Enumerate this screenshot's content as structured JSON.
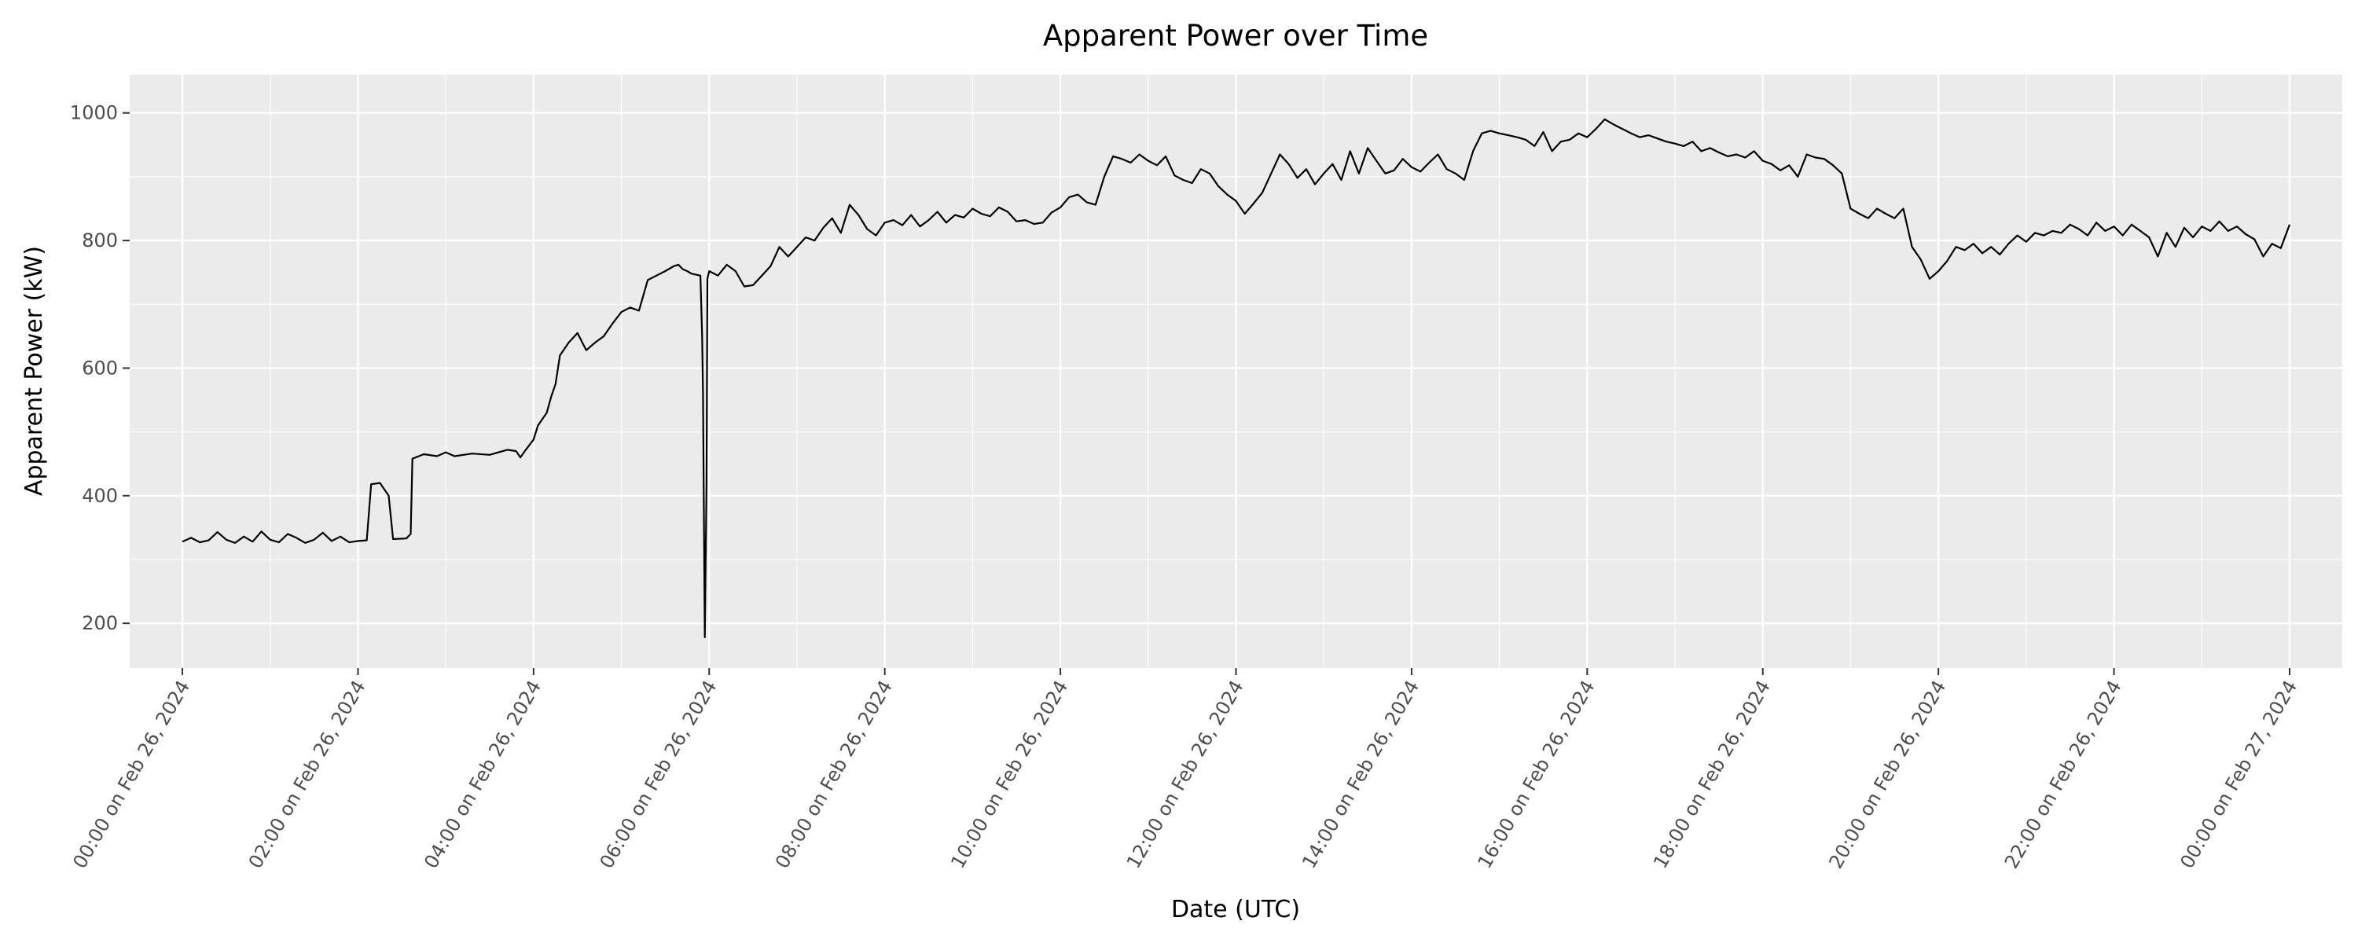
{
  "chart_data": {
    "type": "line",
    "title": "Apparent Power over Time",
    "xlabel": "Date (UTC)",
    "ylabel": "Apparent Power (kW)",
    "x_unit": "hours since 00:00 on Feb 26, 2024",
    "xlim": [
      -0.6,
      24.6
    ],
    "ylim": [
      130,
      1060
    ],
    "x_ticks": [
      {
        "x": 0,
        "label": "00:00 on Feb 26, 2024"
      },
      {
        "x": 2,
        "label": "02:00 on Feb 26, 2024"
      },
      {
        "x": 4,
        "label": "04:00 on Feb 26, 2024"
      },
      {
        "x": 6,
        "label": "06:00 on Feb 26, 2024"
      },
      {
        "x": 8,
        "label": "08:00 on Feb 26, 2024"
      },
      {
        "x": 10,
        "label": "10:00 on Feb 26, 2024"
      },
      {
        "x": 12,
        "label": "12:00 on Feb 26, 2024"
      },
      {
        "x": 14,
        "label": "14:00 on Feb 26, 2024"
      },
      {
        "x": 16,
        "label": "16:00 on Feb 26, 2024"
      },
      {
        "x": 18,
        "label": "18:00 on Feb 26, 2024"
      },
      {
        "x": 20,
        "label": "20:00 on Feb 26, 2024"
      },
      {
        "x": 22,
        "label": "22:00 on Feb 26, 2024"
      },
      {
        "x": 24,
        "label": "00:00 on Feb 27, 2024"
      }
    ],
    "y_ticks": [
      {
        "y": 200,
        "label": "200"
      },
      {
        "y": 400,
        "label": "400"
      },
      {
        "y": 600,
        "label": "600"
      },
      {
        "y": 800,
        "label": "800"
      },
      {
        "y": 1000,
        "label": "1000"
      }
    ],
    "grid": true,
    "legend": "none",
    "series": [
      {
        "color": "#000000",
        "points": [
          [
            0.0,
            328
          ],
          [
            0.1,
            334
          ],
          [
            0.2,
            327
          ],
          [
            0.3,
            330
          ],
          [
            0.4,
            343
          ],
          [
            0.5,
            331
          ],
          [
            0.6,
            326
          ],
          [
            0.7,
            336
          ],
          [
            0.8,
            328
          ],
          [
            0.9,
            344
          ],
          [
            1.0,
            331
          ],
          [
            1.1,
            327
          ],
          [
            1.2,
            340
          ],
          [
            1.3,
            334
          ],
          [
            1.4,
            326
          ],
          [
            1.5,
            331
          ],
          [
            1.6,
            342
          ],
          [
            1.7,
            329
          ],
          [
            1.8,
            336
          ],
          [
            1.9,
            327
          ],
          [
            2.0,
            329
          ],
          [
            2.1,
            330
          ],
          [
            2.15,
            418
          ],
          [
            2.25,
            420
          ],
          [
            2.35,
            400
          ],
          [
            2.4,
            332
          ],
          [
            2.55,
            333
          ],
          [
            2.6,
            340
          ],
          [
            2.62,
            458
          ],
          [
            2.75,
            465
          ],
          [
            2.9,
            462
          ],
          [
            3.0,
            468
          ],
          [
            3.1,
            462
          ],
          [
            3.3,
            466
          ],
          [
            3.5,
            464
          ],
          [
            3.7,
            472
          ],
          [
            3.8,
            470
          ],
          [
            3.85,
            460
          ],
          [
            3.9,
            470
          ],
          [
            4.0,
            488
          ],
          [
            4.05,
            510
          ],
          [
            4.15,
            530
          ],
          [
            4.2,
            555
          ],
          [
            4.25,
            575
          ],
          [
            4.3,
            620
          ],
          [
            4.4,
            640
          ],
          [
            4.5,
            655
          ],
          [
            4.6,
            628
          ],
          [
            4.7,
            640
          ],
          [
            4.8,
            650
          ],
          [
            4.9,
            670
          ],
          [
            5.0,
            688
          ],
          [
            5.1,
            695
          ],
          [
            5.2,
            690
          ],
          [
            5.3,
            738
          ],
          [
            5.4,
            745
          ],
          [
            5.5,
            752
          ],
          [
            5.6,
            760
          ],
          [
            5.65,
            762
          ],
          [
            5.7,
            755
          ],
          [
            5.75,
            752
          ],
          [
            5.8,
            748
          ],
          [
            5.9,
            745
          ],
          [
            5.92,
            650
          ],
          [
            5.93,
            560
          ],
          [
            5.95,
            178
          ],
          [
            5.97,
            420
          ],
          [
            5.98,
            740
          ],
          [
            6.0,
            752
          ],
          [
            6.1,
            745
          ],
          [
            6.2,
            762
          ],
          [
            6.3,
            752
          ],
          [
            6.4,
            728
          ],
          [
            6.5,
            730
          ],
          [
            6.6,
            745
          ],
          [
            6.7,
            760
          ],
          [
            6.8,
            790
          ],
          [
            6.9,
            775
          ],
          [
            7.0,
            790
          ],
          [
            7.1,
            805
          ],
          [
            7.2,
            800
          ],
          [
            7.3,
            820
          ],
          [
            7.4,
            835
          ],
          [
            7.5,
            812
          ],
          [
            7.6,
            856
          ],
          [
            7.7,
            840
          ],
          [
            7.8,
            818
          ],
          [
            7.9,
            808
          ],
          [
            8.0,
            828
          ],
          [
            8.1,
            832
          ],
          [
            8.2,
            824
          ],
          [
            8.3,
            840
          ],
          [
            8.4,
            822
          ],
          [
            8.5,
            832
          ],
          [
            8.6,
            845
          ],
          [
            8.7,
            828
          ],
          [
            8.8,
            840
          ],
          [
            8.9,
            836
          ],
          [
            9.0,
            850
          ],
          [
            9.1,
            842
          ],
          [
            9.2,
            838
          ],
          [
            9.3,
            852
          ],
          [
            9.4,
            845
          ],
          [
            9.5,
            830
          ],
          [
            9.6,
            832
          ],
          [
            9.7,
            826
          ],
          [
            9.8,
            828
          ],
          [
            9.9,
            844
          ],
          [
            10.0,
            852
          ],
          [
            10.1,
            868
          ],
          [
            10.2,
            872
          ],
          [
            10.3,
            860
          ],
          [
            10.4,
            856
          ],
          [
            10.5,
            900
          ],
          [
            10.6,
            932
          ],
          [
            10.7,
            928
          ],
          [
            10.8,
            922
          ],
          [
            10.9,
            935
          ],
          [
            11.0,
            925
          ],
          [
            11.1,
            918
          ],
          [
            11.2,
            932
          ],
          [
            11.3,
            902
          ],
          [
            11.4,
            895
          ],
          [
            11.5,
            890
          ],
          [
            11.6,
            912
          ],
          [
            11.7,
            905
          ],
          [
            11.8,
            885
          ],
          [
            11.9,
            872
          ],
          [
            12.0,
            862
          ],
          [
            12.1,
            842
          ],
          [
            12.2,
            858
          ],
          [
            12.3,
            875
          ],
          [
            12.4,
            905
          ],
          [
            12.5,
            935
          ],
          [
            12.6,
            920
          ],
          [
            12.7,
            898
          ],
          [
            12.8,
            912
          ],
          [
            12.9,
            888
          ],
          [
            13.0,
            905
          ],
          [
            13.1,
            920
          ],
          [
            13.2,
            895
          ],
          [
            13.3,
            940
          ],
          [
            13.4,
            905
          ],
          [
            13.5,
            945
          ],
          [
            13.6,
            925
          ],
          [
            13.7,
            905
          ],
          [
            13.8,
            910
          ],
          [
            13.9,
            928
          ],
          [
            14.0,
            915
          ],
          [
            14.1,
            908
          ],
          [
            14.2,
            922
          ],
          [
            14.3,
            935
          ],
          [
            14.4,
            912
          ],
          [
            14.5,
            905
          ],
          [
            14.6,
            895
          ],
          [
            14.7,
            940
          ],
          [
            14.8,
            968
          ],
          [
            14.9,
            972
          ],
          [
            15.0,
            968
          ],
          [
            15.1,
            965
          ],
          [
            15.2,
            962
          ],
          [
            15.3,
            958
          ],
          [
            15.4,
            948
          ],
          [
            15.5,
            970
          ],
          [
            15.6,
            940
          ],
          [
            15.7,
            955
          ],
          [
            15.8,
            958
          ],
          [
            15.9,
            968
          ],
          [
            16.0,
            962
          ],
          [
            16.1,
            975
          ],
          [
            16.2,
            990
          ],
          [
            16.3,
            982
          ],
          [
            16.4,
            975
          ],
          [
            16.5,
            968
          ],
          [
            16.6,
            962
          ],
          [
            16.7,
            965
          ],
          [
            16.8,
            960
          ],
          [
            16.9,
            955
          ],
          [
            17.0,
            952
          ],
          [
            17.1,
            948
          ],
          [
            17.2,
            955
          ],
          [
            17.3,
            940
          ],
          [
            17.4,
            945
          ],
          [
            17.5,
            938
          ],
          [
            17.6,
            932
          ],
          [
            17.7,
            935
          ],
          [
            17.8,
            930
          ],
          [
            17.9,
            940
          ],
          [
            18.0,
            925
          ],
          [
            18.1,
            920
          ],
          [
            18.2,
            910
          ],
          [
            18.3,
            918
          ],
          [
            18.4,
            900
          ],
          [
            18.5,
            935
          ],
          [
            18.6,
            930
          ],
          [
            18.7,
            928
          ],
          [
            18.8,
            918
          ],
          [
            18.9,
            905
          ],
          [
            19.0,
            850
          ],
          [
            19.1,
            842
          ],
          [
            19.2,
            835
          ],
          [
            19.3,
            850
          ],
          [
            19.4,
            842
          ],
          [
            19.5,
            835
          ],
          [
            19.6,
            850
          ],
          [
            19.7,
            790
          ],
          [
            19.8,
            770
          ],
          [
            19.9,
            740
          ],
          [
            20.0,
            752
          ],
          [
            20.1,
            768
          ],
          [
            20.2,
            790
          ],
          [
            20.3,
            785
          ],
          [
            20.4,
            795
          ],
          [
            20.5,
            780
          ],
          [
            20.6,
            790
          ],
          [
            20.7,
            778
          ],
          [
            20.8,
            795
          ],
          [
            20.9,
            808
          ],
          [
            21.0,
            798
          ],
          [
            21.1,
            812
          ],
          [
            21.2,
            808
          ],
          [
            21.3,
            815
          ],
          [
            21.4,
            812
          ],
          [
            21.5,
            825
          ],
          [
            21.6,
            818
          ],
          [
            21.7,
            808
          ],
          [
            21.8,
            828
          ],
          [
            21.9,
            815
          ],
          [
            22.0,
            822
          ],
          [
            22.1,
            808
          ],
          [
            22.2,
            825
          ],
          [
            22.3,
            815
          ],
          [
            22.4,
            805
          ],
          [
            22.5,
            775
          ],
          [
            22.6,
            812
          ],
          [
            22.7,
            790
          ],
          [
            22.8,
            820
          ],
          [
            22.9,
            805
          ],
          [
            23.0,
            822
          ],
          [
            23.1,
            815
          ],
          [
            23.2,
            830
          ],
          [
            23.3,
            815
          ],
          [
            23.4,
            822
          ],
          [
            23.5,
            810
          ],
          [
            23.6,
            802
          ],
          [
            23.7,
            775
          ],
          [
            23.8,
            795
          ],
          [
            23.9,
            788
          ],
          [
            24.0,
            825
          ]
        ]
      }
    ]
  }
}
